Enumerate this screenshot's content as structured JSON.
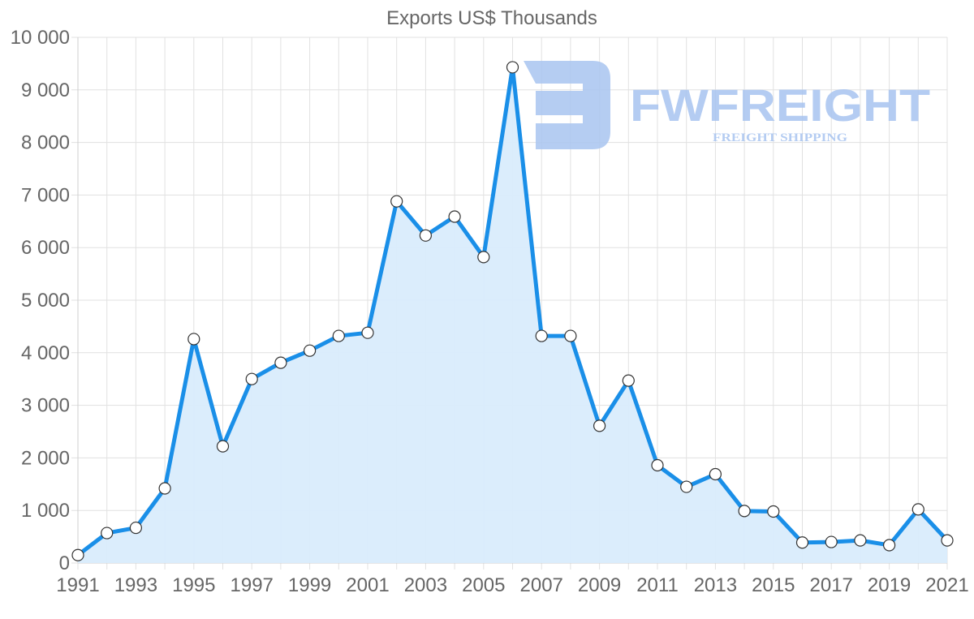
{
  "chart_data": {
    "type": "line",
    "title": "Exports US$ Thousands",
    "xlabel": "",
    "ylabel": "",
    "x": [
      1991,
      1992,
      1993,
      1994,
      1995,
      1996,
      1997,
      1998,
      1999,
      2000,
      2001,
      2002,
      2003,
      2004,
      2005,
      2006,
      2007,
      2008,
      2009,
      2010,
      2011,
      2012,
      2013,
      2014,
      2015,
      2016,
      2017,
      2018,
      2019,
      2020,
      2021
    ],
    "series": [
      {
        "name": "Exports US$ Thousands",
        "values": [
          150,
          570,
          670,
          1420,
          4260,
          2220,
          3500,
          3810,
          4040,
          4320,
          4380,
          6880,
          6230,
          6590,
          5820,
          9430,
          4320,
          4320,
          2610,
          3470,
          1860,
          1450,
          1690,
          990,
          980,
          390,
          400,
          430,
          340,
          1020,
          430
        ]
      }
    ],
    "ylim": [
      0,
      10000
    ],
    "y_ticks": [
      "0",
      "1 000",
      "2 000",
      "3 000",
      "4 000",
      "5 000",
      "6 000",
      "7 000",
      "8 000",
      "9 000",
      "10 000"
    ],
    "y_tick_values": [
      0,
      1000,
      2000,
      3000,
      4000,
      5000,
      6000,
      7000,
      8000,
      9000,
      10000
    ],
    "x_tick_labels": [
      "1991",
      "1993",
      "1995",
      "1997",
      "1999",
      "2001",
      "2003",
      "2005",
      "2007",
      "2009",
      "2011",
      "2013",
      "2015",
      "2017",
      "2019",
      "2021"
    ],
    "grid": true,
    "legend": "none",
    "fill": "area under line",
    "colors": {
      "line": "#1a8fe8",
      "fill": "#d9ecfc",
      "point_fill": "#ffffff",
      "point_stroke": "#333333",
      "grid": "#e1e1e1",
      "text": "#666666"
    }
  },
  "watermark": {
    "brand": "FWFREIGHT",
    "tagline": "FREIGHT SHIPPING",
    "color": "#a8c4f0"
  }
}
